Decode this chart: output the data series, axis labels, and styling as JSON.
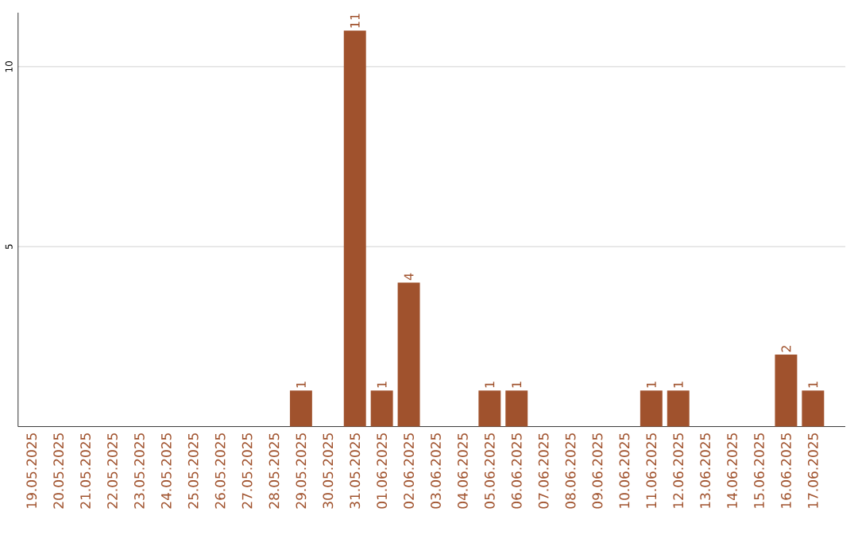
{
  "chart_data": {
    "type": "bar",
    "categories": [
      "19.05.2025",
      "20.05.2025",
      "21.05.2025",
      "22.05.2025",
      "23.05.2025",
      "24.05.2025",
      "25.05.2025",
      "26.05.2025",
      "27.05.2025",
      "28.05.2025",
      "29.05.2025",
      "30.05.2025",
      "31.05.2025",
      "01.06.2025",
      "02.06.2025",
      "03.06.2025",
      "04.06.2025",
      "05.06.2025",
      "06.06.2025",
      "07.06.2025",
      "08.06.2025",
      "09.06.2025",
      "10.06.2025",
      "11.06.2025",
      "12.06.2025",
      "13.06.2025",
      "14.06.2025",
      "15.06.2025",
      "16.06.2025",
      "17.06.2025"
    ],
    "values": [
      0,
      0,
      0,
      0,
      0,
      0,
      0,
      0,
      0,
      0,
      1,
      0,
      11,
      1,
      4,
      0,
      0,
      1,
      1,
      0,
      0,
      0,
      0,
      1,
      1,
      0,
      0,
      0,
      2,
      1
    ],
    "value_labels": [
      null,
      null,
      null,
      null,
      null,
      null,
      null,
      null,
      null,
      null,
      "1",
      null,
      "11",
      "1",
      "4",
      null,
      null,
      "1",
      "1",
      null,
      null,
      null,
      null,
      "1",
      "1",
      null,
      null,
      null,
      "2",
      "1"
    ],
    "color": "#a0522d",
    "ylim": [
      0,
      11.5
    ],
    "yticks": [
      5,
      10
    ],
    "grid": "y"
  }
}
